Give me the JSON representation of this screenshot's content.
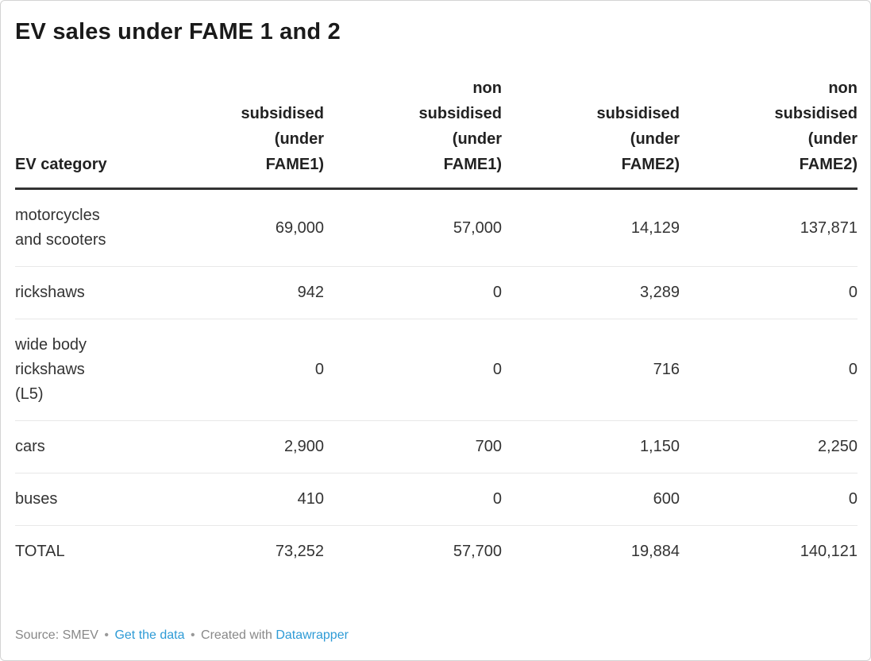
{
  "title": "EV sales under FAME 1 and 2",
  "table": {
    "columns": [
      {
        "key": "ev-category",
        "label": "EV category"
      },
      {
        "key": "subsidised-fame1",
        "label": "subsidised (under FAME1)"
      },
      {
        "key": "non-subsidised-fame1",
        "label": "non subsidised (under FAME1)"
      },
      {
        "key": "subsidised-fame2",
        "label": "subsidised (under FAME2)"
      },
      {
        "key": "non-subsidised-fame2",
        "label": "non subsidised (under FAME2)"
      }
    ],
    "rows": [
      {
        "category": "motorcycles and scooters",
        "values": [
          "69,000",
          "57,000",
          "14,129",
          "137,871"
        ]
      },
      {
        "category": "rickshaws",
        "values": [
          "942",
          "0",
          "3,289",
          "0"
        ]
      },
      {
        "category": "wide body rickshaws (L5)",
        "values": [
          "0",
          "0",
          "716",
          "0"
        ]
      },
      {
        "category": "cars",
        "values": [
          "2,900",
          "700",
          "1,150",
          "2,250"
        ]
      },
      {
        "category": "buses",
        "values": [
          "410",
          "0",
          "600",
          "0"
        ]
      },
      {
        "category": "TOTAL",
        "values": [
          "73,252",
          "57,700",
          "19,884",
          "140,121"
        ]
      }
    ]
  },
  "footer": {
    "source_label": "Source:",
    "source": "SMEV",
    "separator": "•",
    "get_data_label": "Get the data",
    "created_with_label": "Created with",
    "tool_label": "Datawrapper"
  },
  "colors": {
    "title_text": "#1a1a1a",
    "body_text": "#333333",
    "header_rule": "#333333",
    "row_divider": "#e8e8e8",
    "footer_text": "#888888",
    "link_blue": "#2e9bd6",
    "card_border": "#d3d3d3"
  },
  "chart_data": {
    "type": "table",
    "title": "EV sales under FAME 1 and 2",
    "columns": [
      "EV category",
      "subsidised (under FAME1)",
      "non subsidised (under FAME1)",
      "subsidised (under FAME2)",
      "non subsidised (under FAME2)"
    ],
    "rows": [
      [
        "motorcycles and scooters",
        69000,
        57000,
        14129,
        137871
      ],
      [
        "rickshaws",
        942,
        0,
        3289,
        0
      ],
      [
        "wide body rickshaws (L5)",
        0,
        0,
        716,
        0
      ],
      [
        "cars",
        2900,
        700,
        1150,
        2250
      ],
      [
        "buses",
        410,
        0,
        600,
        0
      ],
      [
        "TOTAL",
        73252,
        57700,
        19884,
        140121
      ]
    ],
    "source": "SMEV",
    "created_with": "Datawrapper"
  }
}
